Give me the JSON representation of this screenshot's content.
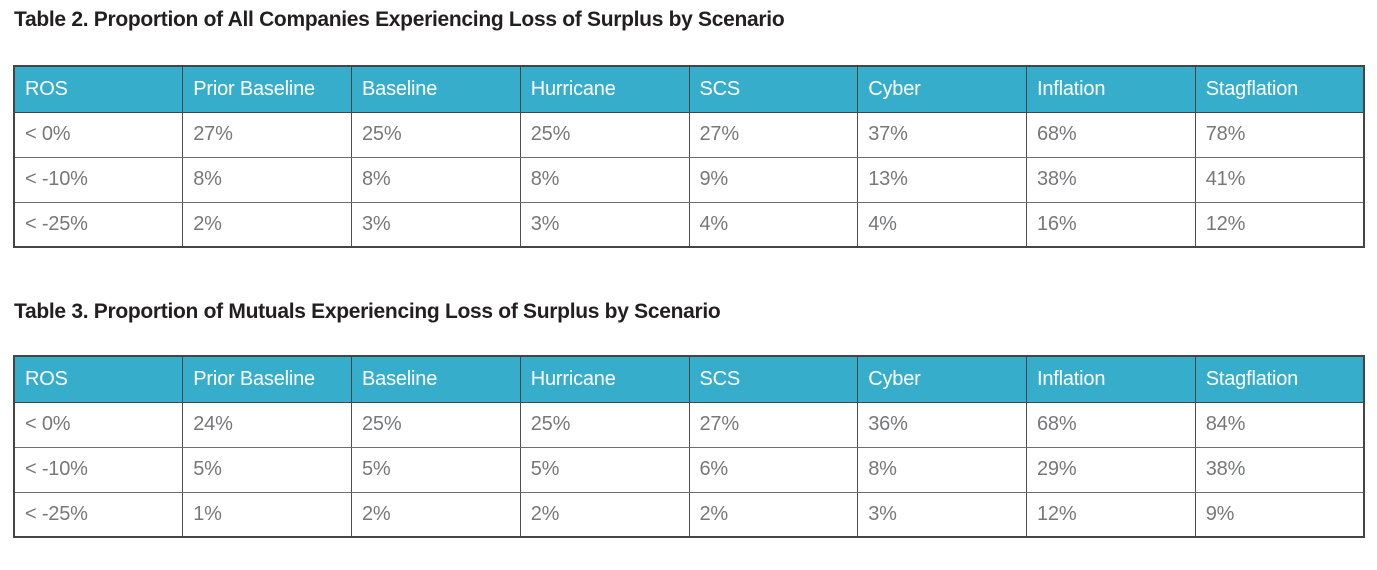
{
  "document": {
    "background": "#ffffff"
  },
  "colors": {
    "header_bg": "#36aecb",
    "header_text": "#ffffff",
    "body_text": "#77787b",
    "title_text": "#231f20",
    "border": "#454545"
  },
  "tables": [
    {
      "title": "Table 2. Proportion of All Companies Experiencing Loss of Surplus by Scenario",
      "columns": [
        "ROS",
        "Prior Baseline",
        "Baseline",
        "Hurricane",
        "SCS",
        "Cyber",
        "Inflation",
        "Stagflation"
      ],
      "rows": [
        [
          "< 0%",
          "27%",
          "25%",
          "25%",
          "27%",
          "37%",
          "68%",
          "78%"
        ],
        [
          "< -10%",
          "8%",
          "8%",
          "8%",
          "9%",
          "13%",
          "38%",
          "41%"
        ],
        [
          "< -25%",
          "2%",
          "3%",
          "3%",
          "4%",
          "4%",
          "16%",
          "12%"
        ]
      ]
    },
    {
      "title": "Table 3. Proportion of Mutuals Experiencing Loss of Surplus by Scenario",
      "columns": [
        "ROS",
        "Prior Baseline",
        "Baseline",
        "Hurricane",
        "SCS",
        "Cyber",
        "Inflation",
        "Stagflation"
      ],
      "rows": [
        [
          "< 0%",
          "24%",
          "25%",
          "25%",
          "27%",
          "36%",
          "68%",
          "84%"
        ],
        [
          "< -10%",
          "5%",
          "5%",
          "5%",
          "6%",
          "8%",
          "29%",
          "38%"
        ],
        [
          "< -25%",
          "1%",
          "2%",
          "2%",
          "2%",
          "3%",
          "12%",
          "9%"
        ]
      ]
    }
  ]
}
